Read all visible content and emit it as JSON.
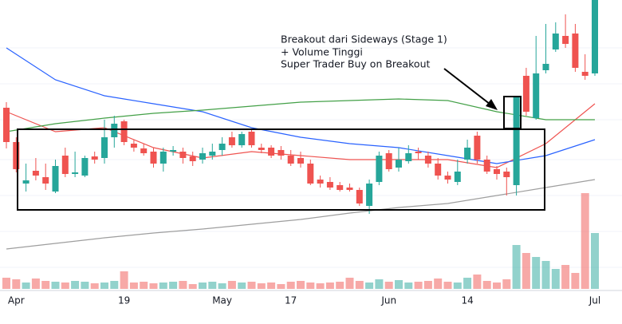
{
  "chart_data": {
    "type": "candlestick",
    "up_color": "#26a69a",
    "down_color": "#ef5350",
    "categories": [
      null,
      "Apr",
      null,
      null,
      null,
      null,
      null,
      null,
      null,
      null,
      null,
      null,
      "19",
      null,
      null,
      null,
      null,
      null,
      null,
      null,
      null,
      null,
      "May",
      null,
      null,
      null,
      null,
      null,
      null,
      "17",
      null,
      null,
      null,
      null,
      null,
      null,
      null,
      null,
      null,
      "Jun",
      null,
      null,
      null,
      null,
      null,
      null,
      null,
      "14",
      null,
      null,
      null,
      null,
      null,
      null,
      null,
      null,
      null,
      null,
      null,
      null,
      "Jul"
    ],
    "open": [
      265,
      222,
      170,
      186,
      178,
      160,
      205,
      182,
      180,
      204,
      202,
      228,
      248,
      220,
      214,
      210,
      195,
      210,
      210,
      204,
      200,
      205,
      212,
      228,
      218,
      235,
      215,
      215,
      212,
      205,
      202,
      195,
      175,
      172,
      168,
      165,
      162,
      142,
      172,
      208,
      190,
      198,
      210,
      205,
      195,
      180,
      172,
      200,
      230,
      200,
      188,
      185,
      168,
      305,
      252,
      312,
      338,
      355,
      358,
      310,
      308
    ],
    "high": [
      272,
      228,
      195,
      202,
      195,
      200,
      215,
      210,
      205,
      210,
      250,
      255,
      250,
      225,
      220,
      215,
      215,
      217,
      215,
      210,
      215,
      220,
      228,
      235,
      235,
      238,
      220,
      218,
      217,
      212,
      210,
      200,
      180,
      178,
      172,
      170,
      165,
      175,
      210,
      212,
      215,
      218,
      215,
      210,
      202,
      185,
      200,
      225,
      235,
      205,
      192,
      190,
      280,
      315,
      355,
      370,
      372,
      382,
      370,
      332,
      400
    ],
    "low": [
      214,
      184,
      160,
      174,
      162,
      158,
      178,
      178,
      178,
      195,
      195,
      215,
      218,
      210,
      205,
      190,
      185,
      205,
      195,
      192,
      195,
      200,
      205,
      215,
      215,
      215,
      208,
      202,
      200,
      192,
      190,
      168,
      165,
      162,
      160,
      160,
      142,
      132,
      168,
      185,
      185,
      195,
      200,
      190,
      175,
      170,
      168,
      195,
      195,
      182,
      175,
      155,
      155,
      255,
      250,
      308,
      335,
      340,
      310,
      300,
      305
    ],
    "close": [
      222,
      188,
      174,
      180,
      170,
      192,
      182,
      184,
      202,
      200,
      228,
      245,
      222,
      215,
      208,
      195,
      210,
      212,
      202,
      198,
      208,
      210,
      220,
      218,
      232,
      218,
      212,
      205,
      205,
      195,
      195,
      170,
      170,
      165,
      162,
      162,
      145,
      170,
      205,
      188,
      200,
      208,
      208,
      195,
      180,
      175,
      185,
      215,
      200,
      185,
      182,
      178,
      278,
      260,
      308,
      320,
      358,
      345,
      315,
      305,
      400
    ],
    "volume": [
      14,
      12,
      8,
      13,
      10,
      9,
      8,
      10,
      9,
      7,
      8,
      10,
      22,
      8,
      9,
      7,
      8,
      9,
      10,
      6,
      8,
      9,
      7,
      10,
      8,
      9,
      7,
      8,
      6,
      9,
      10,
      8,
      7,
      8,
      9,
      14,
      10,
      8,
      12,
      9,
      11,
      8,
      9,
      10,
      13,
      9,
      8,
      14,
      18,
      10,
      8,
      12,
      55,
      45,
      40,
      35,
      25,
      30,
      20,
      120,
      70
    ],
    "ylim": [
      0,
      400
    ],
    "volume_ylim": [
      0,
      130
    ],
    "lines": [
      {
        "color": "#ef5350",
        "x": [
          0,
          5,
          10,
          15,
          20,
          25,
          30,
          35,
          40,
          45,
          50,
          55,
          60
        ],
        "values": [
          260,
          235,
          240,
          215,
          202,
          210,
          205,
          200,
          200,
          200,
          190,
          220,
          270
        ]
      },
      {
        "color": "#2962ff",
        "x": [
          0,
          5,
          10,
          15,
          20,
          25,
          30,
          35,
          40,
          45,
          50,
          55,
          60
        ],
        "values": [
          340,
          300,
          280,
          270,
          260,
          240,
          228,
          220,
          215,
          205,
          195,
          205,
          225
        ]
      },
      {
        "color": "#43a047",
        "x": [
          0,
          5,
          10,
          15,
          20,
          25,
          30,
          35,
          40,
          45,
          50,
          55,
          60
        ],
        "values": [
          235,
          245,
          252,
          258,
          262,
          267,
          272,
          274,
          276,
          274,
          260,
          250,
          250
        ]
      },
      {
        "color": "#9e9e9e",
        "x": [
          0,
          5,
          10,
          15,
          20,
          25,
          30,
          35,
          40,
          45,
          50,
          55,
          60
        ],
        "values": [
          88,
          95,
          102,
          108,
          113,
          119,
          125,
          133,
          140,
          145,
          155,
          165,
          175
        ]
      }
    ],
    "annotation": [
      "Breakout dari Sideways (Stage 1)",
      "+ Volume Tinggi",
      "Super Trader Buy on Breakout"
    ]
  }
}
